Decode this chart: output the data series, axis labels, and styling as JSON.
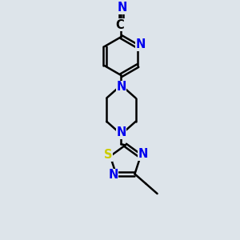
{
  "bg_color": "#dde4ea",
  "bond_color": "#000000",
  "N_color": "#0000ee",
  "S_color": "#cccc00",
  "line_width": 1.8,
  "font_size": 10.5,
  "figsize": [
    3.0,
    3.0
  ],
  "dpi": 100,
  "xlim": [
    0,
    10
  ],
  "ylim": [
    0,
    10
  ]
}
